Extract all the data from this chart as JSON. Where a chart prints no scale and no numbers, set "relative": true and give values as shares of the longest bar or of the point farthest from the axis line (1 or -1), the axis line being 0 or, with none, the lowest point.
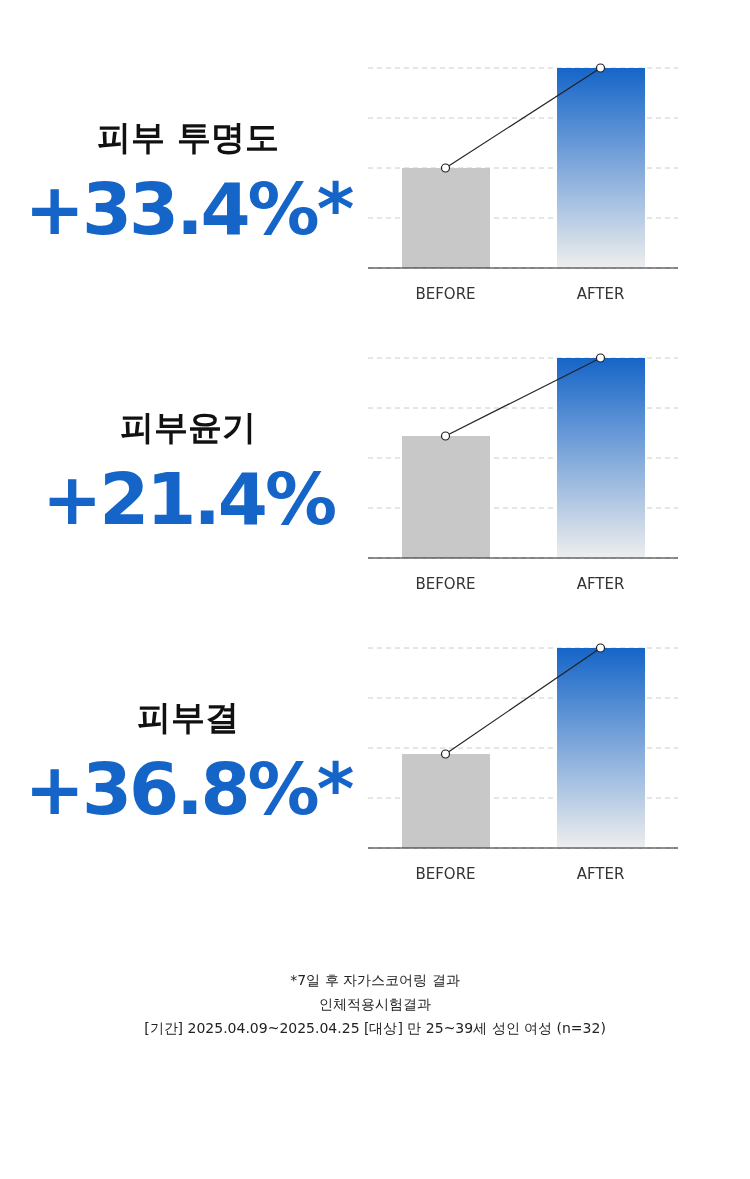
{
  "chart_data": [
    {
      "type": "bar",
      "title": "피부 투명도",
      "subtitle": "+33.4%*",
      "categories": [
        "BEFORE",
        "AFTER"
      ],
      "relative": true,
      "grid": "y",
      "series": [
        {
          "colors": [
            "#c8c8c8",
            "#1565c8"
          ],
          "values": [
            0.5,
            1
          ]
        },
        {
          "type": "line",
          "color": "#222222",
          "marker": "circle",
          "values": [
            0.5,
            1
          ]
        }
      ]
    },
    {
      "type": "bar",
      "title": "피부윤기",
      "subtitle": "+21.4%",
      "categories": [
        "BEFORE",
        "AFTER"
      ],
      "relative": true,
      "grid": "y",
      "series": [
        {
          "colors": [
            "#c8c8c8",
            "#1565c8"
          ],
          "values": [
            0.61,
            1
          ]
        },
        {
          "type": "line",
          "color": "#222222",
          "marker": "circle",
          "values": [
            0.61,
            1
          ]
        }
      ]
    },
    {
      "type": "bar",
      "title": "피부결",
      "subtitle": "+36.8%*",
      "categories": [
        "BEFORE",
        "AFTER"
      ],
      "relative": true,
      "grid": "y",
      "series": [
        {
          "colors": [
            "#c8c8c8",
            "#1565c8"
          ],
          "values": [
            0.47,
            1
          ]
        },
        {
          "type": "line",
          "color": "#222222",
          "marker": "circle",
          "values": [
            0.47,
            1
          ]
        }
      ],
      "annotations": [
        "*7일 후 자가스코어링 결과",
        "인체적용시험결과",
        "[기간] 2025.04.09~2025.04.25  [대상] 만 25~39세 성인 여성 (n=32)"
      ]
    }
  ]
}
